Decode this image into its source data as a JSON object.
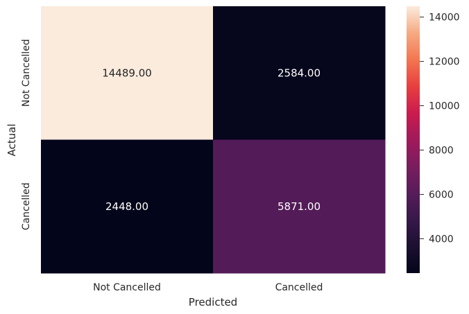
{
  "chart_data": {
    "type": "heatmap",
    "title": "",
    "xlabel": "Predicted",
    "ylabel": "Actual",
    "x_categories": [
      "Not Cancelled",
      "Cancelled"
    ],
    "y_categories": [
      "Not Cancelled",
      "Cancelled"
    ],
    "values": [
      [
        14489,
        2584
      ],
      [
        2448,
        5871
      ]
    ],
    "annotations": [
      [
        "14489.00",
        "2584.00"
      ],
      [
        "2448.00",
        "5871.00"
      ]
    ],
    "colormap": "rocket",
    "colorbar": {
      "range": [
        2448,
        14489
      ],
      "ticks": [
        4000,
        6000,
        8000,
        10000,
        12000,
        14000
      ],
      "tick_labels": [
        "4000",
        "6000",
        "8000",
        "10000",
        "12000",
        "14000"
      ]
    },
    "colors": {
      "low": "#03051a",
      "high": "#faebdd"
    }
  }
}
